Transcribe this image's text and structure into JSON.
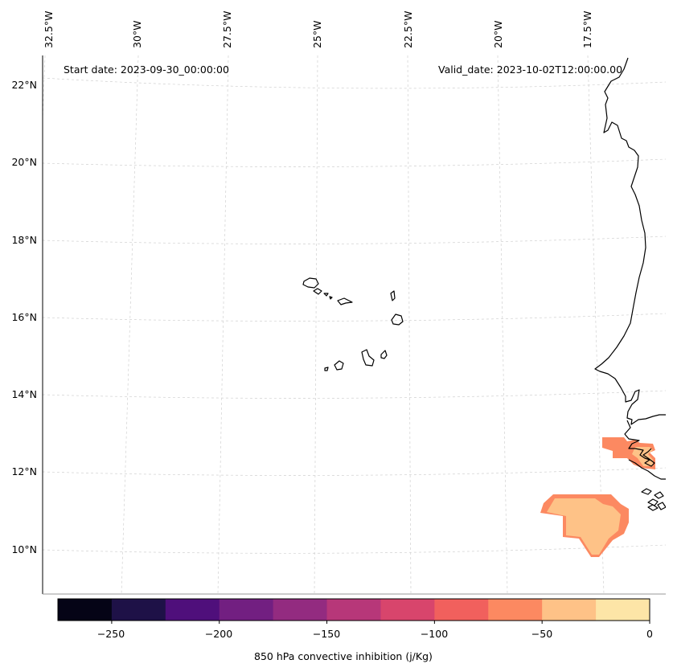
{
  "map": {
    "start_date": "Start date: 2023-09-30_00:00:00",
    "valid_date": "Valid_date: 2023-10-02T12:00:00.00",
    "lon_labels": [
      "32.5°W",
      "30°W",
      "27.5°W",
      "25°W",
      "22.5°W",
      "20°W",
      "17.5°W"
    ],
    "lat_labels": [
      "22°N",
      "20°N",
      "18°N",
      "16°N",
      "14°N",
      "12°N",
      "10°N"
    ],
    "islands_name": "Cape Verde Islands",
    "coastline_name": "West African coastline (Mauritania, Senegal, Gambia, Guinea-Bissau)"
  },
  "colorbar": {
    "label": "850 hPa convective inhibition (j/Kg)",
    "ticks": [
      "−250",
      "−200",
      "−150",
      "−100",
      "−50",
      "0"
    ],
    "levels": [
      -275,
      -250,
      -225,
      -200,
      -175,
      -150,
      -125,
      -100,
      -75,
      -50,
      -25,
      0
    ],
    "colors": [
      "#050416",
      "#1e1147",
      "#4f0f7b",
      "#721f81",
      "#932b80",
      "#b73779",
      "#d8456c",
      "#f1605d",
      "#fc8961",
      "#fec287",
      "#fde5a7"
    ]
  },
  "colors": {
    "cin_moderate": "#fc8961",
    "cin_weak": "#fec287",
    "gridline": "#d0d0d0",
    "coastline": "#000000"
  }
}
